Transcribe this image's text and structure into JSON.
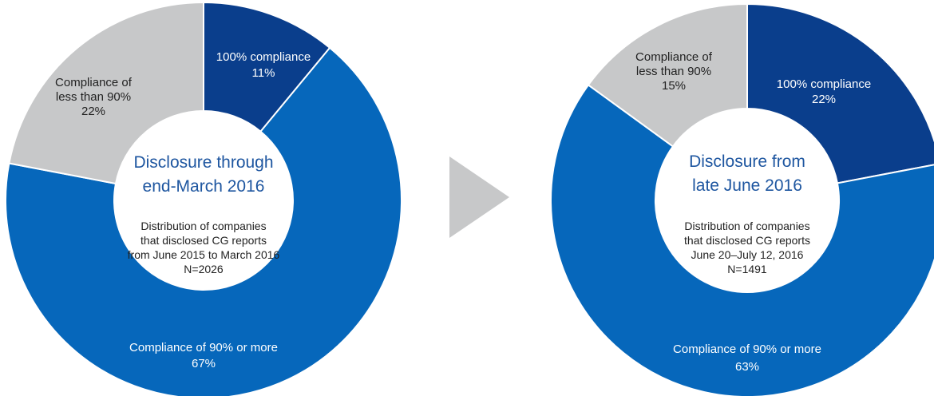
{
  "chart_data": [
    {
      "type": "pie",
      "title": "Disclosure through end-March 2016",
      "subtitle": [
        "Distribution of companies",
        "that disclosed CG reports",
        "from June 2015 to March 2016",
        "N=2026"
      ],
      "categories": [
        "100% compliance",
        "Compliance of 90% or more",
        "Compliance of less than 90%"
      ],
      "values": [
        11,
        67,
        22
      ],
      "value_labels": [
        "11%",
        "67%",
        "22%"
      ],
      "label_lines": [
        [
          "100% compliance"
        ],
        [
          "Compliance of 90% or more"
        ],
        [
          "Compliance of",
          "less than 90%"
        ]
      ],
      "colors": [
        "#0a3e8c",
        "#0667bb",
        "#c7c8c9"
      ]
    },
    {
      "type": "pie",
      "title": "Disclosure from late June 2016",
      "subtitle": [
        "Distribution of companies",
        "that disclosed CG reports",
        "June 20–July 12, 2016",
        "N=1491"
      ],
      "categories": [
        "100% compliance",
        "Compliance of 90% or more",
        "Compliance of less than 90%"
      ],
      "values": [
        22,
        63,
        15
      ],
      "value_labels": [
        "22%",
        "63%",
        "15%"
      ],
      "label_lines": [
        [
          "100% compliance"
        ],
        [
          "Compliance of 90% or more"
        ],
        [
          "Compliance of",
          "less than 90%"
        ]
      ],
      "colors": [
        "#0a3e8c",
        "#0667bb",
        "#c7c8c9"
      ]
    }
  ],
  "colors": {
    "title": "#1e56a0",
    "text": "#222222",
    "arrow": "#c7c8c9",
    "background": "#ffffff"
  }
}
